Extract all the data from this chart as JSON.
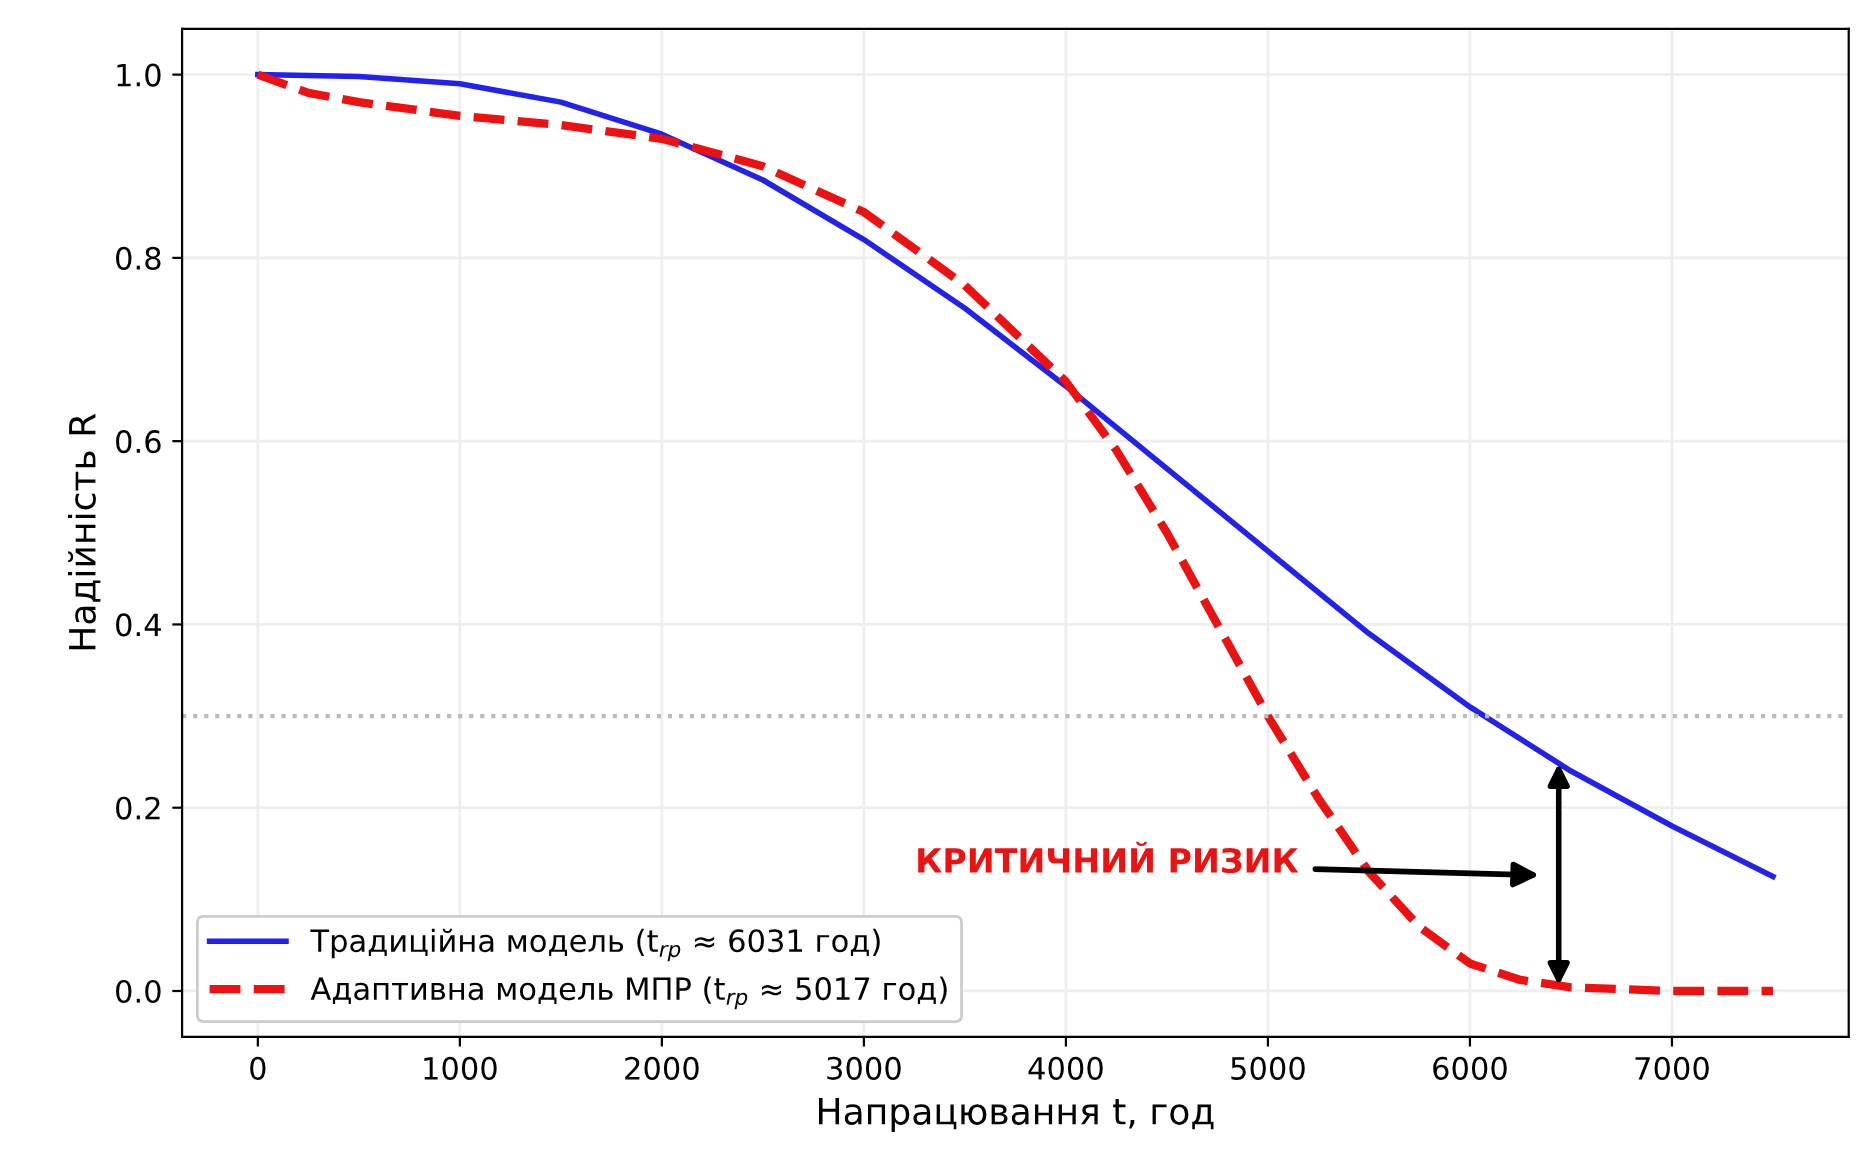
{
  "chart_data": {
    "type": "line",
    "xlabel": "Напрацювання t, год",
    "ylabel": "Надійність R",
    "xlim": [
      -375,
      7875
    ],
    "xticks": [
      0,
      1000,
      2000,
      3000,
      4000,
      5000,
      6000,
      7000
    ],
    "ylim": [
      -0.05,
      1.05
    ],
    "yticks": [
      {
        "value": 0,
        "label": "0.0"
      },
      {
        "value": 0.2,
        "label": "0.2"
      },
      {
        "value": 0.4,
        "label": "0.4"
      },
      {
        "value": 0.6,
        "label": "0.6"
      },
      {
        "value": 0.8,
        "label": "0.8"
      },
      {
        "value": 1,
        "label": "1.0"
      }
    ],
    "grid": true,
    "legend": "bottom left",
    "series": [
      {
        "name": "Традиційна модель (t$_{rp}$ ≈ 6031 год)",
        "color": "#2222ee",
        "line_style": "solid",
        "x": [
          0,
          500,
          1000,
          1500,
          2000,
          2500,
          3000,
          3500,
          4000,
          4500,
          5000,
          5500,
          6000,
          6500,
          7000,
          7500
        ],
        "values": [
          1.0,
          0.998,
          0.99,
          0.97,
          0.935,
          0.885,
          0.82,
          0.745,
          0.66,
          0.57,
          0.48,
          0.39,
          0.31,
          0.24,
          0.18,
          0.125
        ]
      },
      {
        "name": "Адаптивна модель МПР (t$_{rp}$ ≈ 5017 год)",
        "color": "#ee1111",
        "line_style": "dashed",
        "x": [
          0,
          250,
          500,
          1000,
          1500,
          2000,
          2500,
          3000,
          3500,
          4000,
          4250,
          4500,
          4750,
          5000,
          5250,
          5500,
          5750,
          6000,
          6250,
          6500,
          7000,
          7500
        ],
        "values": [
          1.0,
          0.98,
          0.97,
          0.955,
          0.945,
          0.93,
          0.9,
          0.85,
          0.77,
          0.665,
          0.59,
          0.5,
          0.4,
          0.3,
          0.21,
          0.13,
          0.07,
          0.03,
          0.012,
          0.004,
          0.0,
          0.0
        ]
      }
    ],
    "ref_lines": [
      {
        "axis": "y",
        "value": 0.3,
        "color": "#bbbbbb",
        "line_style": "dotted"
      }
    ],
    "annotations": [
      "КРИТИЧНИЙ РИЗИК"
    ]
  }
}
